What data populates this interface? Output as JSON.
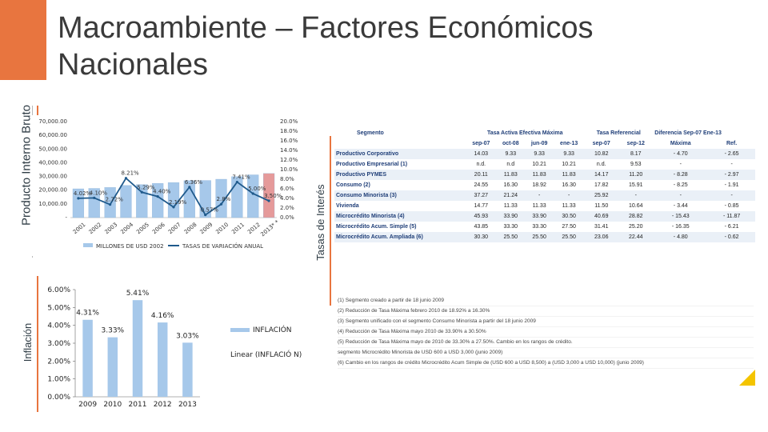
{
  "slide": {
    "title": "Macroambiente – Factores Económicos Nacionales",
    "side_labels": {
      "pib": "Producto Interno Bruto",
      "inflacion": "Inflación",
      "tasas": "Tasas de Interés"
    },
    "colors": {
      "accent": "#e8753f",
      "bar": "#a6c8ea",
      "line": "#1f5a8c"
    }
  },
  "pib_chart": {
    "left_axis": [
      "70,000.00",
      "60,000.00",
      "50,000.00",
      "40,000.00",
      "30,000.00",
      "20,000.00",
      "10,000.00",
      "-"
    ],
    "right_axis": [
      "20.0%",
      "18.0%",
      "16.0%",
      "14.0%",
      "12.0%",
      "10.0%",
      "8.0%",
      "6.0%",
      "4.0%",
      "2.0%",
      "0.0%"
    ],
    "years": [
      "2001",
      "2002",
      "2003",
      "2004",
      "2005",
      "2006",
      "2007",
      "2008",
      "2009",
      "2010",
      "2011",
      "2012",
      "2013* *"
    ],
    "bar_values": [
      21.0,
      21.3,
      22.0,
      23.5,
      24.1,
      25.0,
      25.6,
      27.0,
      27.1,
      28.0,
      29.9,
      31.2,
      32.2
    ],
    "growth": [
      4.02,
      4.1,
      2.72,
      8.21,
      5.29,
      4.4,
      2.19,
      6.36,
      0.57,
      2.8,
      7.41,
      5.0,
      3.5
    ],
    "growth_labels": [
      "4.02%",
      "4.10%",
      "2.72%",
      "8.21%",
      "5.29%",
      "4.40%",
      "2.19%",
      "6.36%",
      "0.57%",
      "2.8%",
      "7.41%",
      "5.00%",
      "3.50%"
    ],
    "legend": {
      "bars": "MILLONES DE USD 2002",
      "line": "TASAS DE VARIACIÓN ANUAL"
    }
  },
  "inflation_chart": {
    "y_ticks": [
      "6.00%",
      "5.00%",
      "4.00%",
      "3.00%",
      "2.00%",
      "1.00%",
      "0.00%"
    ],
    "categories": [
      "2009",
      "2010",
      "2011",
      "2012",
      "2013"
    ],
    "values": [
      4.31,
      3.33,
      5.41,
      4.16,
      3.03
    ],
    "value_labels": [
      "4.31%",
      "3.33%",
      "5.41%",
      "4.16%",
      "3.03%"
    ],
    "legend": [
      "INFLACIÓN",
      "Linear (INFLACIÓ N)"
    ]
  },
  "rates_table": {
    "segment_header": "Segmento",
    "group_headers": [
      "Tasa Activa Efectiva Máxima",
      "Tasa Referencial"
    ],
    "columns": [
      "sep-07",
      "oct-08",
      "jun-09",
      "ene-13",
      "sep-07",
      "sep-12",
      "Máxima",
      "Ref."
    ],
    "diff_header": "Diferencia Sep-07 Ene-13",
    "rows": [
      {
        "segment": "Productivo Corporativo",
        "cells": [
          "14.03",
          "9.33",
          "9.33",
          "9.33",
          "10.82",
          "8.17",
          "- 4.70",
          "- 2.65"
        ]
      },
      {
        "segment": "Productivo Empresarial (1)",
        "cells": [
          "n.d.",
          "n.d",
          "10.21",
          "10.21",
          "n.d.",
          "9.53",
          "-",
          "-"
        ]
      },
      {
        "segment": "Productivo PYMES",
        "cells": [
          "20.11",
          "11.83",
          "11.83",
          "11.83",
          "14.17",
          "11.20",
          "- 8.28",
          "- 2.97"
        ]
      },
      {
        "segment": "Consumo (2)",
        "cells": [
          "24.55",
          "16.30",
          "18.92",
          "16.30",
          "17.82",
          "15.91",
          "- 8.25",
          "- 1.91"
        ]
      },
      {
        "segment": "Consumo Minorista (3)",
        "cells": [
          "37.27",
          "21.24",
          "-",
          "-",
          "25.92",
          "-",
          "-",
          "-"
        ]
      },
      {
        "segment": "Vivienda",
        "cells": [
          "14.77",
          "11.33",
          "11.33",
          "11.33",
          "11.50",
          "10.64",
          "- 3.44",
          "- 0.85"
        ]
      },
      {
        "segment": "Microcrédito Minorista (4)",
        "cells": [
          "45.93",
          "33.90",
          "33.90",
          "30.50",
          "40.69",
          "28.82",
          "- 15.43",
          "- 11.87"
        ]
      },
      {
        "segment": "Microcrédito Acum. Simple (5)",
        "cells": [
          "43.85",
          "33.30",
          "33.30",
          "27.50",
          "31.41",
          "25.20",
          "- 16.35",
          "- 6.21"
        ]
      },
      {
        "segment": "Microcrédito Acum. Ampliada (6)",
        "cells": [
          "30.30",
          "25.50",
          "25.50",
          "25.50",
          "23.06",
          "22.44",
          "- 4.80",
          "- 0.62"
        ]
      }
    ],
    "notes": [
      "(1) Segmento creado a partir de 18 junio 2009",
      "(2) Reducción de Tasa Máxima febrero 2010 de 18.92% a 16.30%",
      "(3) Segmento unificado con el segmento Consumo Minorista a partir del 18 junio 2009",
      "(4) Reducción de Tasa Máxima mayo 2010 de 33.90% a 30.50%",
      "(5) Reducción de Tasa Máxima mayo de 2010 de 33.30% a 27.50%. Cambio en los rangos de crédito.",
      "segmento Microcrédito Minorista de USD 600 a USD 3,000 (junio 2009)",
      "(6) Cambio en los rangos de crédito Microcrédito Acum Simple de (USD 600 a USD 8,500) a (USD 3,000 a USD 10,000) (junio 2009)"
    ]
  }
}
